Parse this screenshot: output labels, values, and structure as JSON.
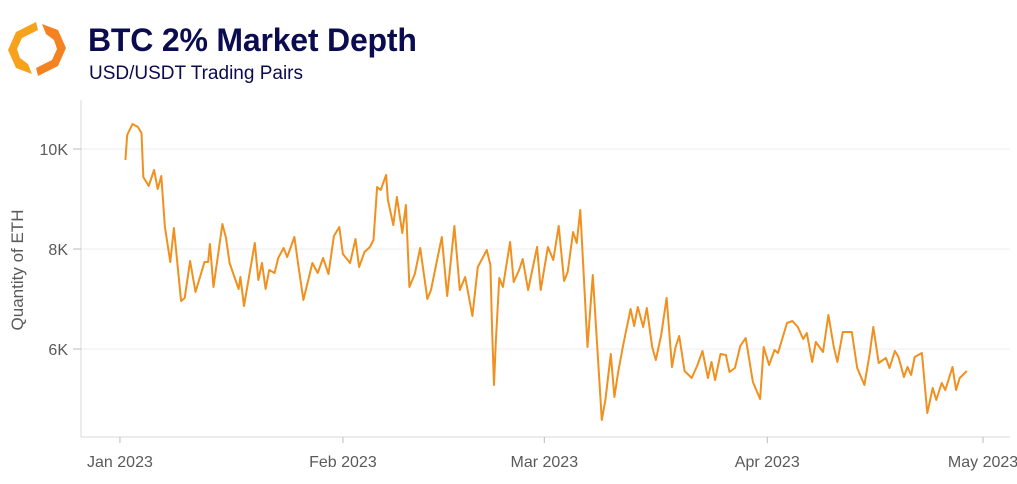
{
  "header": {
    "title": "BTC 2% Market Depth",
    "subtitle": "USD/USDT Trading Pairs",
    "logo_icon": "orange-hexagon-brackets-logo"
  },
  "chart_data": {
    "type": "line",
    "title": "BTC 2% Market Depth",
    "subtitle": "USD/USDT Trading Pairs",
    "xlabel": "",
    "ylabel": "Quantity of ETH",
    "xlim": [
      "2022-12-26T14:00",
      "2023-05-04T18:00"
    ],
    "ylim": [
      4240,
      10980
    ],
    "grid": true,
    "legend": "none",
    "color": "#f0901f",
    "y_ticks": [
      {
        "value": 6000,
        "label": "6K"
      },
      {
        "value": 8000,
        "label": "8K"
      },
      {
        "value": 10000,
        "label": "10K"
      }
    ],
    "x_ticks": [
      {
        "value": "2023-01-01T00:00",
        "label": "Jan 2023"
      },
      {
        "value": "2023-02-01T00:00",
        "label": "Feb 2023"
      },
      {
        "value": "2023-03-01T00:00",
        "label": "Mar 2023"
      },
      {
        "value": "2023-04-01T00:00",
        "label": "Apr 2023"
      },
      {
        "value": "2023-05-01T00:00",
        "label": "May 2023"
      }
    ],
    "x": [
      "2023-01-01T18:00",
      "2023-01-02T00:00",
      "2023-01-02T18:00",
      "2023-01-03T12:00",
      "2023-01-04T00:00",
      "2023-01-04T06:00",
      "2023-01-05T00:00",
      "2023-01-05T18:00",
      "2023-01-06T06:00",
      "2023-01-06T18:00",
      "2023-01-07T06:00",
      "2023-01-08T00:00",
      "2023-01-08T12:00",
      "2023-01-09T12:00",
      "2023-01-10T00:00",
      "2023-01-10T18:00",
      "2023-01-11T12:00",
      "2023-01-12T18:00",
      "2023-01-13T06:00",
      "2023-01-13T12:00",
      "2023-01-14T00:00",
      "2023-01-15T06:00",
      "2023-01-15T18:00",
      "2023-01-16T06:00",
      "2023-01-17T12:00",
      "2023-01-17T18:00",
      "2023-01-18T06:00",
      "2023-01-19T18:00",
      "2023-01-20T06:00",
      "2023-01-20T18:00",
      "2023-01-21T06:00",
      "2023-01-21T18:00",
      "2023-01-22T12:00",
      "2023-01-23T00:00",
      "2023-01-23T18:00",
      "2023-01-24T06:00",
      "2023-01-25T06:00",
      "2023-01-25T18:00",
      "2023-01-26T12:00",
      "2023-01-27T18:00",
      "2023-01-28T12:00",
      "2023-01-29T06:00",
      "2023-01-30T00:00",
      "2023-01-30T18:00",
      "2023-01-31T12:00",
      "2023-02-01T00:00",
      "2023-02-02T00:00",
      "2023-02-02T18:00",
      "2023-02-03T06:00",
      "2023-02-04T00:00",
      "2023-02-04T18:00",
      "2023-02-05T06:00",
      "2023-02-05T18:00",
      "2023-02-06T06:00",
      "2023-02-07T00:00",
      "2023-02-07T06:00",
      "2023-02-08T00:00",
      "2023-02-08T12:00",
      "2023-02-09T06:00",
      "2023-02-09T18:00",
      "2023-02-10T06:00",
      "2023-02-11T00:00",
      "2023-02-11T18:00",
      "2023-02-12T18:00",
      "2023-02-13T06:00",
      "2023-02-14T18:00",
      "2023-02-15T12:00",
      "2023-02-16T12:00",
      "2023-02-17T06:00",
      "2023-02-18T00:00",
      "2023-02-19T00:00",
      "2023-02-19T18:00",
      "2023-02-21T00:00",
      "2023-02-21T12:00",
      "2023-02-21T18:00",
      "2023-02-22T00:00",
      "2023-02-22T06:00",
      "2023-02-22T18:00",
      "2023-02-23T06:00",
      "2023-02-24T06:00",
      "2023-02-24T18:00",
      "2023-02-25T12:00",
      "2023-02-26T00:00",
      "2023-02-26T18:00",
      "2023-02-28T00:00",
      "2023-02-28T12:00",
      "2023-03-01T12:00",
      "2023-03-02T06:00",
      "2023-03-03T00:00",
      "2023-03-03T18:00",
      "2023-03-04T06:00",
      "2023-03-05T00:00",
      "2023-03-05T12:00",
      "2023-03-06T00:00",
      "2023-03-07T00:00",
      "2023-03-07T18:00",
      "2023-03-09T00:00",
      "2023-03-09T12:00",
      "2023-03-10T06:00",
      "2023-03-10T18:00",
      "2023-03-11T06:00",
      "2023-03-12T00:00",
      "2023-03-13T00:00",
      "2023-03-13T12:00",
      "2023-03-14T00:00",
      "2023-03-14T18:00",
      "2023-03-15T06:00",
      "2023-03-16T00:00",
      "2023-03-16T12:00",
      "2023-03-17T06:00",
      "2023-03-18T00:00",
      "2023-03-18T18:00",
      "2023-03-19T06:00",
      "2023-03-19T18:00",
      "2023-03-20T12:00",
      "2023-03-21T12:00",
      "2023-03-22T06:00",
      "2023-03-23T00:00",
      "2023-03-23T18:00",
      "2023-03-24T06:00",
      "2023-03-24T18:00",
      "2023-03-25T12:00",
      "2023-03-26T06:00",
      "2023-03-26T18:00",
      "2023-03-27T12:00",
      "2023-03-28T06:00",
      "2023-03-29T00:00",
      "2023-03-30T00:00",
      "2023-03-31T00:00",
      "2023-03-31T12:00",
      "2023-04-01T06:00",
      "2023-04-02T00:00",
      "2023-04-02T12:00",
      "2023-04-03T18:00",
      "2023-04-04T12:00",
      "2023-04-05T06:00",
      "2023-04-06T00:00",
      "2023-04-06T12:00",
      "2023-04-07T06:00",
      "2023-04-07T18:00",
      "2023-04-08T18:00",
      "2023-04-09T12:00",
      "2023-04-10T06:00",
      "2023-04-10T18:00",
      "2023-04-11T12:00",
      "2023-04-12T18:00",
      "2023-04-13T12:00",
      "2023-04-14T12:00",
      "2023-04-15T06:00",
      "2023-04-15T18:00",
      "2023-04-16T12:00",
      "2023-04-17T12:00",
      "2023-04-18T00:00",
      "2023-04-18T18:00",
      "2023-04-19T06:00",
      "2023-04-20T00:00",
      "2023-04-20T12:00",
      "2023-04-21T00:00",
      "2023-04-21T12:00",
      "2023-04-22T12:00",
      "2023-04-23T06:00",
      "2023-04-24T00:00",
      "2023-04-24T12:00",
      "2023-04-25T06:00",
      "2023-04-25T18:00",
      "2023-04-26T18:00",
      "2023-04-27T06:00",
      "2023-04-27T18:00",
      "2023-04-28T18:00"
    ],
    "series": [
      {
        "values": [
          9780,
          10280,
          10500,
          10440,
          10320,
          9440,
          9260,
          9580,
          9200,
          9460,
          8440,
          7740,
          8420,
          6960,
          7020,
          7760,
          7140,
          7740,
          7740,
          8100,
          7240,
          8500,
          8220,
          7720,
          7200,
          7440,
          6860,
          8120,
          7380,
          7720,
          7200,
          7580,
          7520,
          7820,
          8020,
          7840,
          8240,
          7720,
          6980,
          7720,
          7520,
          7820,
          7500,
          8260,
          8440,
          7900,
          7720,
          8200,
          7640,
          7940,
          8040,
          8180,
          9240,
          9180,
          9480,
          8980,
          8480,
          9040,
          8320,
          8880,
          7240,
          7500,
          8020,
          7000,
          7180,
          8240,
          7060,
          8460,
          7180,
          7440,
          6660,
          7640,
          7980,
          7680,
          6320,
          5280,
          6140,
          7420,
          7240,
          8140,
          7340,
          7580,
          7800,
          7180,
          8040,
          7180,
          8040,
          7780,
          8460,
          7360,
          7540,
          8340,
          8120,
          8780,
          6040,
          7480,
          4580,
          4980,
          5900,
          5040,
          5520,
          6100,
          6800,
          6460,
          6840,
          6440,
          6820,
          6040,
          5780,
          6280,
          7020,
          5640,
          6040,
          6260,
          5560,
          5420,
          5660,
          5960,
          5420,
          5740,
          5380,
          5900,
          5880,
          5540,
          5620,
          6060,
          6220,
          5340,
          5000,
          6040,
          5680,
          5980,
          5920,
          6520,
          6560,
          6440,
          6200,
          6320,
          5740,
          6140,
          5940,
          6680,
          6040,
          5740,
          6340,
          6340,
          5620,
          5280,
          5920,
          6440,
          5720,
          5820,
          5620,
          5960,
          5840,
          5440,
          5640,
          5480,
          5840,
          5920,
          4720,
          5220,
          4980,
          5320,
          5180,
          5640,
          5180,
          5420,
          5560
        ]
      }
    ]
  }
}
